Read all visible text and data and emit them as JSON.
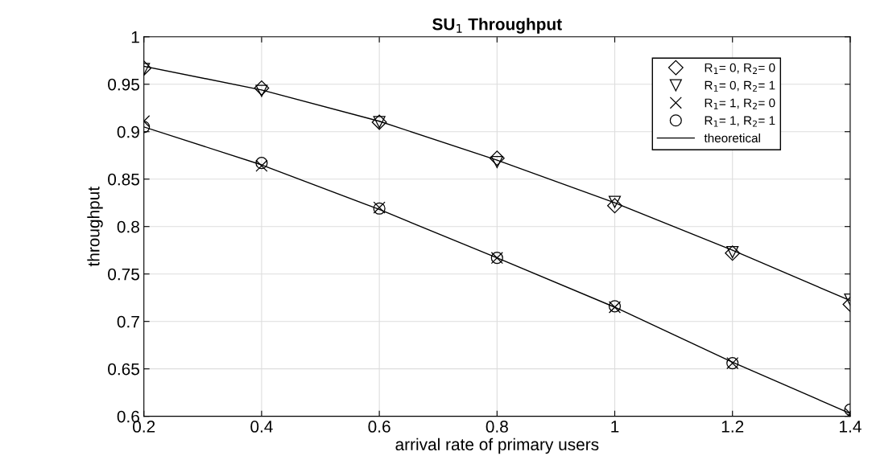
{
  "chart_data": {
    "type": "scatter",
    "title": "SU$_{1}$ Throughput",
    "xlabel": "arrival rate of primary users",
    "ylabel": "throughput",
    "x": [
      0.2,
      0.4,
      0.6,
      0.8,
      1.0,
      1.2,
      1.4
    ],
    "series": [
      {
        "name": "R$_{1}$= 0, R$_{2}$= 0",
        "color": "#000000",
        "marker": "diamond",
        "values": [
          0.967,
          0.946,
          0.91,
          0.872,
          0.822,
          0.772,
          0.718
        ]
      },
      {
        "name": "R$_{1}$= 0, R$_{2}$= 1",
        "color": "#000000",
        "marker": "triangle",
        "values": [
          0.966,
          0.943,
          0.91,
          0.868,
          0.826,
          0.773,
          0.723
        ]
      },
      {
        "name": "R$_{1}$= 1, R$_{2}$= 0",
        "color": "#000000",
        "marker": "cross",
        "values": [
          0.911,
          0.864,
          0.82,
          0.767,
          0.715,
          0.656,
          0.603
        ]
      },
      {
        "name": "R$_{1}$= 1, R$_{2}$= 1",
        "color": "#000000",
        "marker": "circle",
        "values": [
          0.905,
          0.867,
          0.819,
          0.767,
          0.716,
          0.656,
          0.607
        ]
      },
      {
        "name": "theoretical",
        "type": "line",
        "color": "#000000",
        "marker": "none",
        "line_style": "solid",
        "values": [
          0.969,
          0.944,
          0.911,
          0.87,
          0.825,
          0.775,
          0.722
        ]
      },
      {
        "type": "line",
        "color": "#000000",
        "marker": "none",
        "line_style": "solid",
        "values": [
          0.905,
          0.865,
          0.818,
          0.767,
          0.715,
          0.657,
          0.603
        ]
      }
    ],
    "xlim": [
      0.2,
      1.4
    ],
    "xticks": [
      0.2,
      0.4,
      0.6,
      0.8,
      1,
      1.2,
      1.4
    ],
    "ylim": [
      0.6,
      1
    ],
    "yticks": [
      0.6,
      0.65,
      0.7,
      0.75,
      0.8,
      0.85,
      0.9,
      0.95,
      1
    ],
    "grid": true,
    "legend": "top right"
  }
}
